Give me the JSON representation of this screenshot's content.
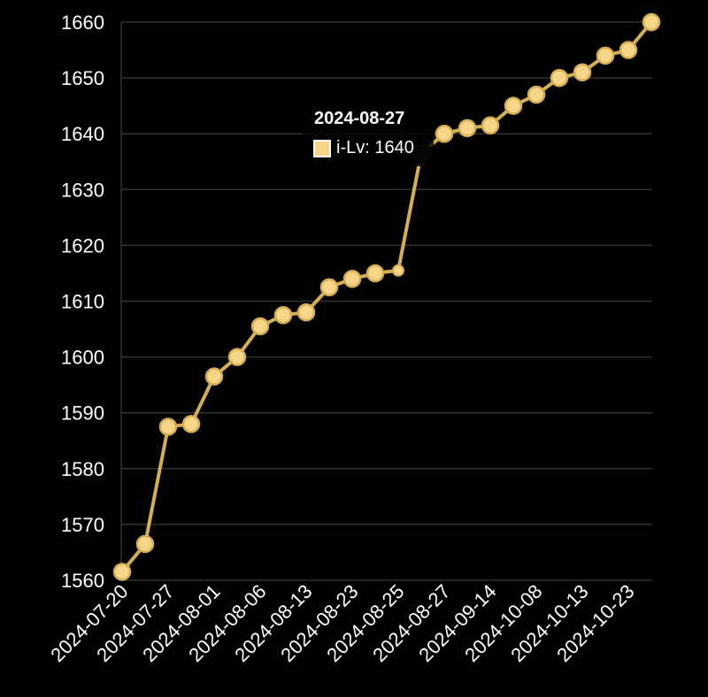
{
  "chart_data": {
    "type": "line",
    "title": "",
    "xlabel": "",
    "ylabel": "",
    "ylim": [
      1560,
      1660
    ],
    "yticks": [
      1560,
      1570,
      1580,
      1590,
      1600,
      1610,
      1620,
      1630,
      1640,
      1650,
      1660
    ],
    "x_tick_labels": [
      "2024-07-20",
      "2024-07-27",
      "2024-08-01",
      "2024-08-06",
      "2024-08-13",
      "2024-08-23",
      "2024-08-25",
      "2024-08-27",
      "2024-09-14",
      "2024-10-08",
      "2024-10-13",
      "2024-10-23"
    ],
    "grid": "horizontal",
    "series": [
      {
        "name": "i-Lv",
        "color": "#f7d68a",
        "line_color": "#d4ae55",
        "values": [
          1561.5,
          1566.5,
          1587.5,
          1588,
          1596.5,
          1600,
          1605.5,
          1607.5,
          1608,
          1612.5,
          1614,
          1615,
          1615.5,
          1636.5,
          1640,
          1641,
          1641.5,
          1645,
          1647,
          1650,
          1651,
          1654,
          1655,
          1660
        ]
      }
    ]
  },
  "tooltip": {
    "title": "2024-08-27",
    "label": "i-Lv: 1640",
    "swatch_color": "#f7d68a"
  },
  "colors": {
    "background": "#000000",
    "grid": "#333333",
    "axis_text": "#ffffff"
  }
}
